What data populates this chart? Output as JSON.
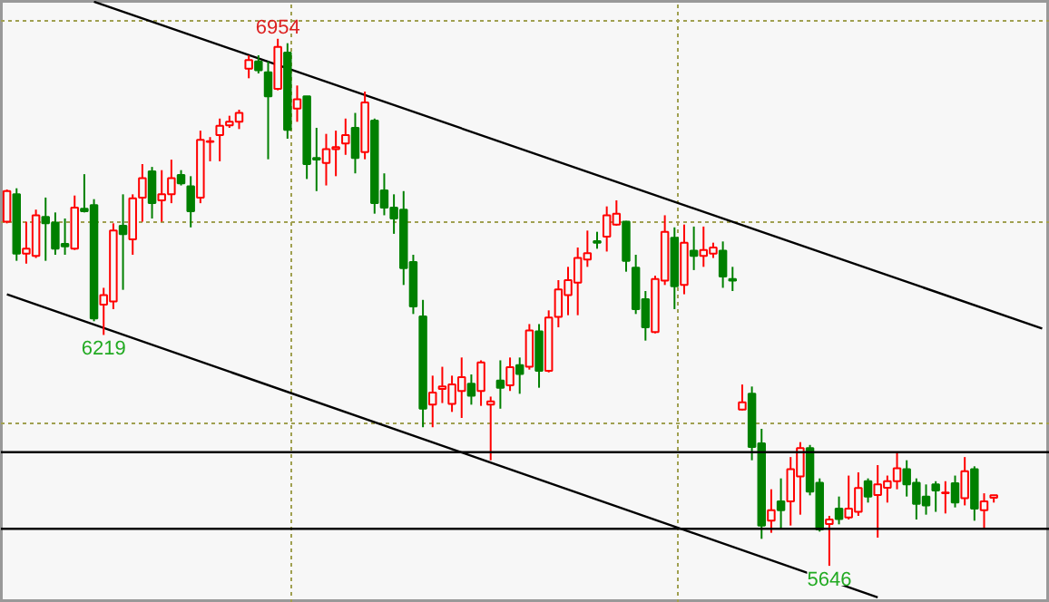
{
  "chart_data": {
    "type": "candlestick",
    "categories": [
      null,
      null,
      null,
      null,
      null,
      null,
      null,
      null,
      null,
      null,
      null,
      null,
      null,
      null,
      null,
      null,
      null,
      null,
      null,
      null,
      null,
      null,
      null,
      null,
      null,
      null,
      null,
      null,
      null,
      null,
      null,
      null,
      null,
      null,
      null,
      null,
      null,
      null,
      null,
      null,
      null,
      null,
      null,
      null,
      null,
      null,
      null,
      null,
      null,
      null,
      null,
      null,
      null,
      null,
      null,
      null,
      null,
      null,
      null,
      null,
      null,
      null,
      null,
      null,
      null,
      null,
      null,
      null,
      null,
      null,
      null,
      null,
      null,
      null,
      null,
      null,
      null,
      null,
      null,
      null,
      null,
      null,
      null,
      null,
      null,
      null,
      null,
      null,
      null,
      null,
      null,
      null,
      null,
      null,
      null,
      null,
      null,
      null,
      null,
      null,
      null,
      null,
      null,
      null,
      null,
      null,
      null,
      null
    ],
    "ohlc": [
      [
        6500,
        6580,
        6496,
        6576
      ],
      [
        6568,
        6583,
        6403,
        6421
      ],
      [
        6421,
        6500,
        6396,
        6433
      ],
      [
        6415,
        6530,
        6410,
        6516
      ],
      [
        6512,
        6560,
        6403,
        6496
      ],
      [
        6498,
        6523,
        6418,
        6433
      ],
      [
        6445,
        6508,
        6418,
        6439
      ],
      [
        6433,
        6565,
        6430,
        6535
      ],
      [
        6532,
        6618,
        6523,
        6526
      ],
      [
        6541,
        6556,
        6253,
        6260
      ],
      [
        6294,
        6336,
        6219,
        6318
      ],
      [
        6302,
        6496,
        6283,
        6478
      ],
      [
        6490,
        6568,
        6331,
        6469
      ],
      [
        6456,
        6568,
        6418,
        6558
      ],
      [
        6560,
        6643,
        6500,
        6608
      ],
      [
        6625,
        6636,
        6508,
        6546
      ],
      [
        6553,
        6628,
        6500,
        6568
      ],
      [
        6568,
        6654,
        6546,
        6608
      ],
      [
        6616,
        6628,
        6590,
        6595
      ],
      [
        6588,
        6613,
        6486,
        6526
      ],
      [
        6560,
        6726,
        6546,
        6703
      ],
      [
        6698,
        6710,
        6650,
        6700
      ],
      [
        6715,
        6756,
        6650,
        6738
      ],
      [
        6739,
        6763,
        6733,
        6748
      ],
      [
        6748,
        6778,
        6730,
        6770
      ],
      [
        6880,
        6913,
        6856,
        6901
      ],
      [
        6898,
        6913,
        6868,
        6876
      ],
      [
        6871,
        6898,
        6655,
        6811
      ],
      [
        6830,
        6954,
        6826,
        6934
      ],
      [
        6920,
        6943,
        6706,
        6728
      ],
      [
        6781,
        6838,
        6748,
        6804
      ],
      [
        6811,
        6811,
        6606,
        6643
      ],
      [
        6658,
        6733,
        6576,
        6654
      ],
      [
        6646,
        6718,
        6590,
        6680
      ],
      [
        6680,
        6726,
        6613,
        6685
      ],
      [
        6694,
        6756,
        6666,
        6715
      ],
      [
        6733,
        6770,
        6620,
        6658
      ],
      [
        6673,
        6823,
        6655,
        6796
      ],
      [
        6751,
        6756,
        6520,
        6546
      ],
      [
        6578,
        6620,
        6516,
        6535
      ],
      [
        6535,
        6568,
        6470,
        6508
      ],
      [
        6530,
        6576,
        6343,
        6385
      ],
      [
        6400,
        6418,
        6271,
        6290
      ],
      [
        6265,
        6306,
        5990,
        6036
      ],
      [
        6046,
        6118,
        5990,
        6076
      ],
      [
        6085,
        6140,
        6050,
        6091
      ],
      [
        6048,
        6118,
        6028,
        6096
      ],
      [
        6080,
        6163,
        6013,
        6114
      ],
      [
        6098,
        6121,
        6046,
        6068
      ],
      [
        6080,
        6156,
        6043,
        6151
      ],
      [
        6046,
        6066,
        5908,
        6054
      ],
      [
        6106,
        6156,
        6036,
        6088
      ],
      [
        6094,
        6163,
        6080,
        6139
      ],
      [
        6144,
        6163,
        6073,
        6122
      ],
      [
        6140,
        6246,
        6133,
        6230
      ],
      [
        6228,
        6246,
        6088,
        6130
      ],
      [
        6130,
        6280,
        6126,
        6262
      ],
      [
        6264,
        6355,
        6238,
        6332
      ],
      [
        6318,
        6388,
        6268,
        6355
      ],
      [
        6349,
        6436,
        6268,
        6410
      ],
      [
        6406,
        6478,
        6388,
        6422
      ],
      [
        6452,
        6475,
        6433,
        6448
      ],
      [
        6463,
        6538,
        6426,
        6516
      ],
      [
        6493,
        6553,
        6490,
        6520
      ],
      [
        6500,
        6502,
        6376,
        6403
      ],
      [
        6386,
        6418,
        6271,
        6283
      ],
      [
        6308,
        6328,
        6205,
        6238
      ],
      [
        6226,
        6366,
        6223,
        6358
      ],
      [
        6354,
        6516,
        6343,
        6475
      ],
      [
        6460,
        6486,
        6283,
        6340
      ],
      [
        6343,
        6493,
        6320,
        6448
      ],
      [
        6428,
        6488,
        6380,
        6415
      ],
      [
        6415,
        6488,
        6388,
        6430
      ],
      [
        6421,
        6448,
        6410,
        6436
      ],
      [
        6428,
        6451,
        6336,
        6364
      ],
      [
        6358,
        6388,
        6328,
        6354
      ],
      [
        6034,
        6096,
        6032,
        6052
      ],
      [
        6073,
        6091,
        5908,
        5941
      ],
      [
        5950,
        5986,
        5713,
        5746
      ],
      [
        5758,
        5836,
        5728,
        5784
      ],
      [
        5806,
        5863,
        5738,
        5784
      ],
      [
        5806,
        5916,
        5746,
        5886
      ],
      [
        5868,
        5953,
        5773,
        5938
      ],
      [
        5938,
        5946,
        5821,
        5830
      ],
      [
        5852,
        5863,
        5731,
        5736
      ],
      [
        5750,
        5770,
        5646,
        5761
      ],
      [
        5788,
        5818,
        5749,
        5762
      ],
      [
        5766,
        5870,
        5761,
        5788
      ],
      [
        5780,
        5878,
        5770,
        5839
      ],
      [
        5856,
        5863,
        5803,
        5818
      ],
      [
        5822,
        5896,
        5716,
        5848
      ],
      [
        5840,
        5870,
        5803,
        5856
      ],
      [
        5856,
        5926,
        5836,
        5888
      ],
      [
        5886,
        5908,
        5818,
        5848
      ],
      [
        5852,
        5863,
        5761,
        5800
      ],
      [
        5818,
        5848,
        5773,
        5796
      ],
      [
        5848,
        5856,
        5780,
        5833
      ],
      [
        5826,
        5856,
        5776,
        5828
      ],
      [
        5851,
        5870,
        5791,
        5803
      ],
      [
        5814,
        5916,
        5796,
        5881
      ],
      [
        5886,
        5893,
        5758,
        5788
      ],
      [
        5784,
        5826,
        5738,
        5806
      ],
      [
        5815,
        5822,
        5803,
        5821
      ],
      null,
      null,
      null,
      null,
      null
    ],
    "series": [
      {
        "type": "line",
        "color": "#000000",
        "values": [
          null,
          null,
          null,
          null,
          null,
          null,
          null,
          null,
          null,
          7046,
          null,
          null,
          null,
          null,
          null,
          null,
          null,
          null,
          null,
          null,
          null,
          null,
          null,
          null,
          null,
          null,
          null,
          null,
          null,
          null,
          null,
          null,
          null,
          null,
          null,
          null,
          null,
          null,
          null,
          null,
          null,
          null,
          null,
          null,
          null,
          null,
          null,
          null,
          null,
          null,
          null,
          null,
          null,
          null,
          null,
          null,
          null,
          null,
          null,
          null,
          null,
          null,
          null,
          null,
          null,
          null,
          null,
          null,
          null,
          null,
          null,
          null,
          null,
          null,
          null,
          null,
          null,
          null,
          null,
          null,
          null,
          null,
          null,
          null,
          null,
          null,
          null,
          null,
          null,
          null,
          null,
          null,
          null,
          null,
          null,
          null,
          null,
          null,
          null,
          null,
          null,
          null,
          null,
          null,
          null,
          null,
          null,
          6235
        ]
      },
      {
        "type": "line",
        "color": "#000000",
        "values": [
          6320,
          null,
          null,
          null,
          null,
          null,
          null,
          null,
          null,
          null,
          null,
          null,
          null,
          null,
          null,
          null,
          null,
          null,
          null,
          null,
          null,
          null,
          null,
          null,
          null,
          null,
          null,
          null,
          null,
          null,
          null,
          null,
          null,
          null,
          null,
          null,
          null,
          null,
          null,
          null,
          null,
          null,
          null,
          null,
          null,
          null,
          null,
          null,
          null,
          null,
          null,
          null,
          null,
          null,
          null,
          null,
          null,
          null,
          null,
          null,
          null,
          null,
          null,
          null,
          null,
          null,
          null,
          null,
          null,
          null,
          null,
          null,
          null,
          null,
          null,
          null,
          null,
          null,
          null,
          null,
          null,
          null,
          null,
          null,
          null,
          null,
          null,
          null,
          null,
          null,
          5568,
          null,
          null,
          null,
          null,
          null,
          null,
          null,
          null,
          null,
          null,
          null,
          null,
          null,
          null,
          null,
          null,
          null
        ]
      }
    ],
    "ylim": [
      5554,
      7048
    ],
    "yticks": [
      {
        "value": 6000,
        "label": null
      },
      {
        "value": 6500,
        "label": null
      },
      {
        "value": 7000,
        "label": null
      }
    ],
    "tick_labels": false,
    "grid": true,
    "ref_lines": [
      {
        "axis": "y",
        "value": 5928,
        "color": "#000000"
      },
      {
        "axis": "y",
        "value": 5738,
        "color": "#000000"
      }
    ],
    "annotations": [
      {
        "text": "6954",
        "y": 6954
      },
      {
        "text": "6219",
        "y": 6219
      },
      {
        "text": "5646",
        "y": 5646
      }
    ]
  }
}
